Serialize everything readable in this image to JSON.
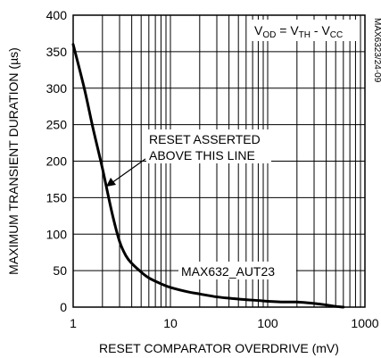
{
  "chart_data": {
    "type": "line",
    "x_scale": "log",
    "xlim": [
      1,
      1000
    ],
    "ylim": [
      0,
      400
    ],
    "grid": "on",
    "xlabel": "RESET COMPARATOR OVERDRIVE (mV)",
    "ylabel": "MAXIMUM TRANSIENT DURATION (µs)",
    "x_ticks": [
      "1",
      "10",
      "100",
      "1000"
    ],
    "y_ticks": [
      "0",
      "50",
      "100",
      "150",
      "200",
      "250",
      "300",
      "350",
      "400"
    ],
    "formula": {
      "v1": "V",
      "s1": "OD",
      "eq": " = ",
      "v2": "V",
      "s2": "TH",
      "minus": " - ",
      "v3": "V",
      "s3": "CC"
    },
    "side_code": "MAX6323/24-09",
    "annotation_region": [
      "RESET ASSERTED",
      "ABOVE THIS LINE"
    ],
    "annotation_part": "MAX632_AUT23",
    "series": [
      {
        "x": [
          1,
          1.3,
          1.6,
          2,
          2.5,
          3,
          3.5,
          4,
          5,
          6,
          8,
          10,
          15,
          20,
          30,
          50,
          80,
          100,
          150,
          200,
          300,
          400,
          500,
          600
        ],
        "y": [
          360,
          300,
          245,
          190,
          130,
          90,
          70,
          60,
          48,
          40,
          32,
          27,
          21,
          18,
          14,
          11,
          9,
          8,
          7,
          7,
          5,
          3,
          1,
          0
        ]
      }
    ]
  }
}
